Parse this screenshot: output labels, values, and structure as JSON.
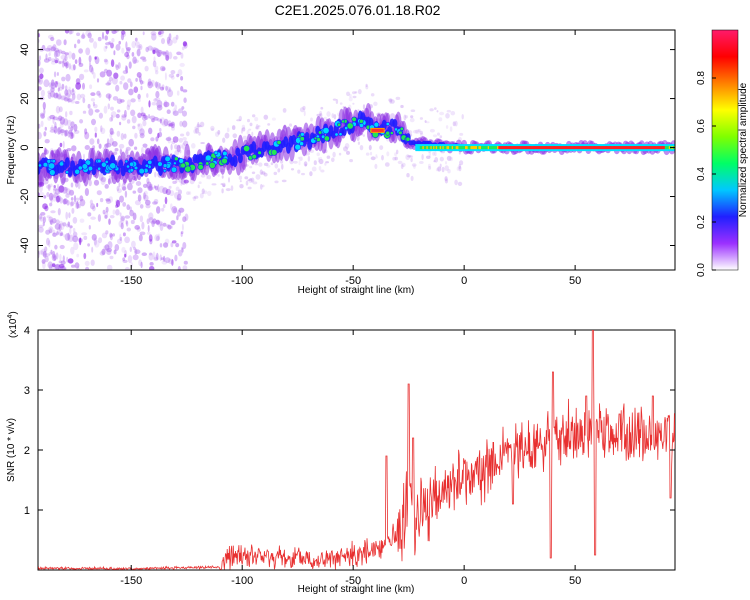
{
  "title": "C2E1.2025.076.01.18.R02",
  "chart_data": [
    {
      "type": "heatmap",
      "xlabel": "Height of straight line (km)",
      "ylabel": "Frequency (Hz)",
      "xlim": [
        -192,
        95
      ],
      "ylim": [
        -50,
        48
      ],
      "x_ticks": [
        -150,
        -100,
        -50,
        0,
        50
      ],
      "y_ticks": [
        -40,
        -20,
        0,
        20,
        40
      ],
      "colorbar": {
        "label": "Normalized spectral amplitude",
        "range": [
          0,
          1
        ],
        "ticks": [
          "0.0",
          "0.2",
          "0.4",
          "0.6",
          "0.8"
        ],
        "colors": [
          "#ffffff",
          "#9b30ff",
          "#2020ff",
          "#00c8ff",
          "#00ff66",
          "#80ff00",
          "#ffff00",
          "#ff8000",
          "#ff0000",
          "#ff1a6b"
        ]
      },
      "ridge": [
        {
          "x": -190,
          "y": -8
        },
        {
          "x": -140,
          "y": -7
        },
        {
          "x": -130,
          "y": -7
        },
        {
          "x": -100,
          "y": -3
        },
        {
          "x": -60,
          "y": 6
        },
        {
          "x": -45,
          "y": 12
        },
        {
          "x": -40,
          "y": 7
        },
        {
          "x": -30,
          "y": 8
        },
        {
          "x": -25,
          "y": 2
        },
        {
          "x": 0,
          "y": 0
        },
        {
          "x": 95,
          "y": 0
        }
      ]
    },
    {
      "type": "line",
      "xlabel": "Height of straight line (km)",
      "ylabel": "SNR (10 * v/v)",
      "y_multiplier": "(x10",
      "y_multiplier_exp": "4",
      "y_multiplier_close": ")",
      "xlim": [
        -192,
        95
      ],
      "ylim": [
        0,
        4
      ],
      "x_ticks": [
        -150,
        -100,
        -50,
        0,
        50
      ],
      "y_ticks": [
        1,
        2,
        3,
        4
      ],
      "series_color": "#e83030",
      "trend": [
        {
          "x": -192,
          "y": 0.03
        },
        {
          "x": -150,
          "y": 0.02
        },
        {
          "x": -110,
          "y": 0.05
        },
        {
          "x": -105,
          "y": 0.25
        },
        {
          "x": -80,
          "y": 0.2
        },
        {
          "x": -60,
          "y": 0.15
        },
        {
          "x": -40,
          "y": 0.35
        },
        {
          "x": -30,
          "y": 0.6
        },
        {
          "x": -25,
          "y": 1.2
        },
        {
          "x": -20,
          "y": 0.9
        },
        {
          "x": -10,
          "y": 1.3
        },
        {
          "x": 0,
          "y": 1.5
        },
        {
          "x": 20,
          "y": 1.9
        },
        {
          "x": 40,
          "y": 2.2
        },
        {
          "x": 60,
          "y": 2.3
        },
        {
          "x": 80,
          "y": 2.2
        },
        {
          "x": 95,
          "y": 2.3
        }
      ],
      "peaks": [
        {
          "x": -25,
          "y": 3.1
        },
        {
          "x": -35,
          "y": 1.9
        },
        {
          "x": -23,
          "y": 2.2
        },
        {
          "x": 58,
          "y": 4.0
        },
        {
          "x": 40,
          "y": 3.3
        },
        {
          "x": 55,
          "y": 2.9
        },
        {
          "x": 85,
          "y": 2.9
        },
        {
          "x": 70,
          "y": 2.6
        }
      ],
      "dips": [
        {
          "x": 39,
          "y": 0.2
        },
        {
          "x": 59,
          "y": 0.25
        },
        {
          "x": 93,
          "y": 1.2
        },
        {
          "x": 22,
          "y": 1.1
        }
      ]
    }
  ]
}
